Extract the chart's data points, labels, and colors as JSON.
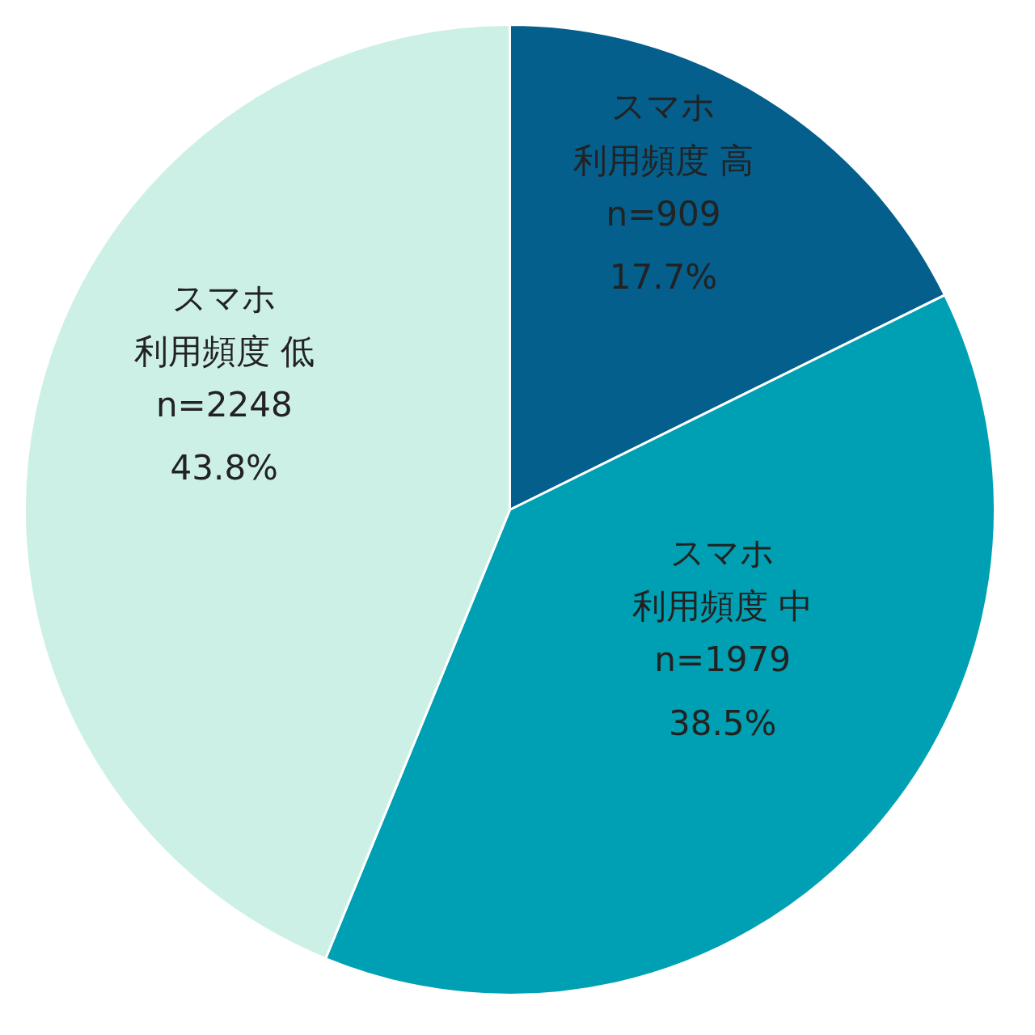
{
  "chart_data": {
    "type": "pie",
    "categories": [
      "スマホ利用頻度 高\nn=909",
      "スマホ利用頻度 中\nn=1979",
      "スマホ利用頻度 低\nn=2248"
    ],
    "values": [
      17.7,
      38.5,
      43.8
    ],
    "value_labels": [
      "17.7%",
      "38.5%",
      "43.8%"
    ],
    "colors": [
      "#045f8c",
      "#00a0b4",
      "#cdf0e6"
    ]
  }
}
